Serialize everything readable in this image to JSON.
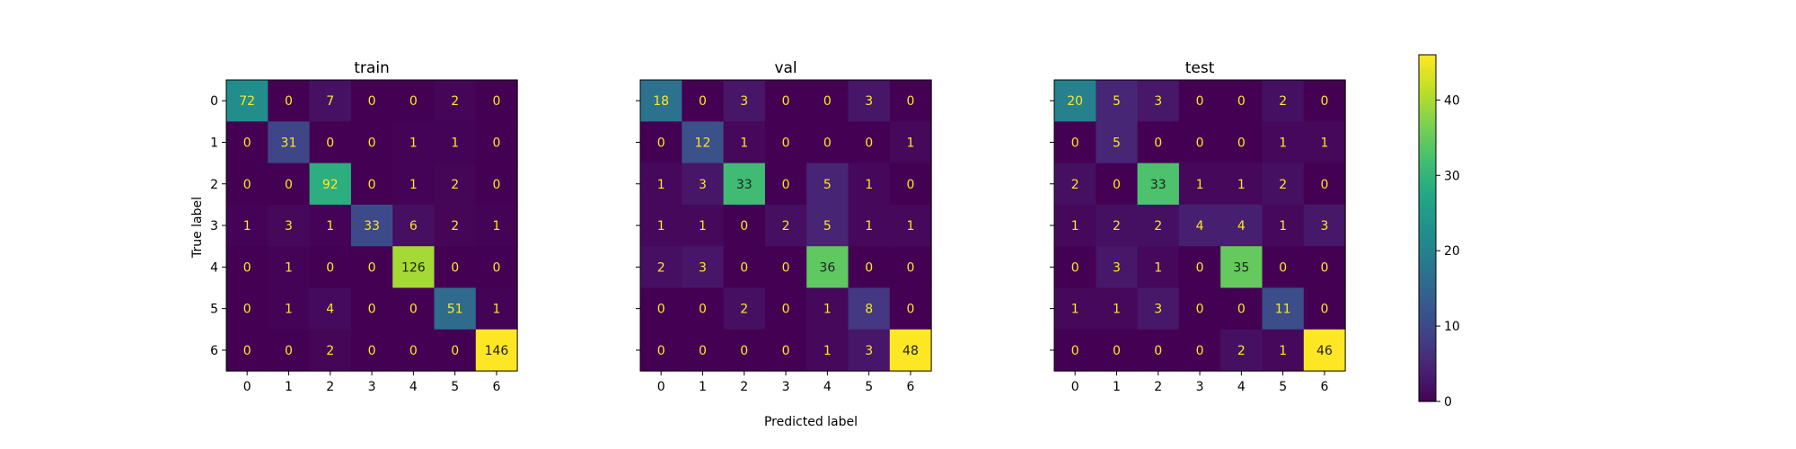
{
  "chart_data": {
    "type": "heatmap",
    "xlabel": "Predicted label",
    "ylabel": "True label",
    "labels": [
      "0",
      "1",
      "2",
      "3",
      "4",
      "5",
      "6"
    ],
    "colormap": "viridis",
    "colorbar": {
      "range": [
        0,
        46
      ],
      "ticks": [
        0,
        10,
        20,
        30,
        40
      ]
    },
    "panels": [
      {
        "title": "train",
        "matrix": [
          [
            72,
            0,
            7,
            0,
            0,
            2,
            0
          ],
          [
            0,
            31,
            0,
            0,
            1,
            1,
            0
          ],
          [
            0,
            0,
            92,
            0,
            1,
            2,
            0
          ],
          [
            1,
            3,
            1,
            33,
            6,
            2,
            1
          ],
          [
            0,
            1,
            0,
            0,
            126,
            0,
            0
          ],
          [
            0,
            1,
            4,
            0,
            0,
            51,
            1
          ],
          [
            0,
            0,
            2,
            0,
            0,
            0,
            146
          ]
        ]
      },
      {
        "title": "val",
        "matrix": [
          [
            18,
            0,
            3,
            0,
            0,
            3,
            0
          ],
          [
            0,
            12,
            1,
            0,
            0,
            0,
            1
          ],
          [
            1,
            3,
            33,
            0,
            5,
            1,
            0
          ],
          [
            1,
            1,
            0,
            2,
            5,
            1,
            1
          ],
          [
            2,
            3,
            0,
            0,
            36,
            0,
            0
          ],
          [
            0,
            0,
            2,
            0,
            1,
            8,
            0
          ],
          [
            0,
            0,
            0,
            0,
            1,
            3,
            48
          ]
        ]
      },
      {
        "title": "test",
        "matrix": [
          [
            20,
            5,
            3,
            0,
            0,
            2,
            0
          ],
          [
            0,
            5,
            0,
            0,
            0,
            1,
            1
          ],
          [
            2,
            0,
            33,
            1,
            1,
            2,
            0
          ],
          [
            1,
            2,
            2,
            4,
            4,
            1,
            3
          ],
          [
            0,
            3,
            1,
            0,
            35,
            0,
            0
          ],
          [
            1,
            1,
            3,
            0,
            0,
            11,
            0
          ],
          [
            0,
            0,
            0,
            0,
            2,
            1,
            46
          ]
        ]
      }
    ]
  }
}
